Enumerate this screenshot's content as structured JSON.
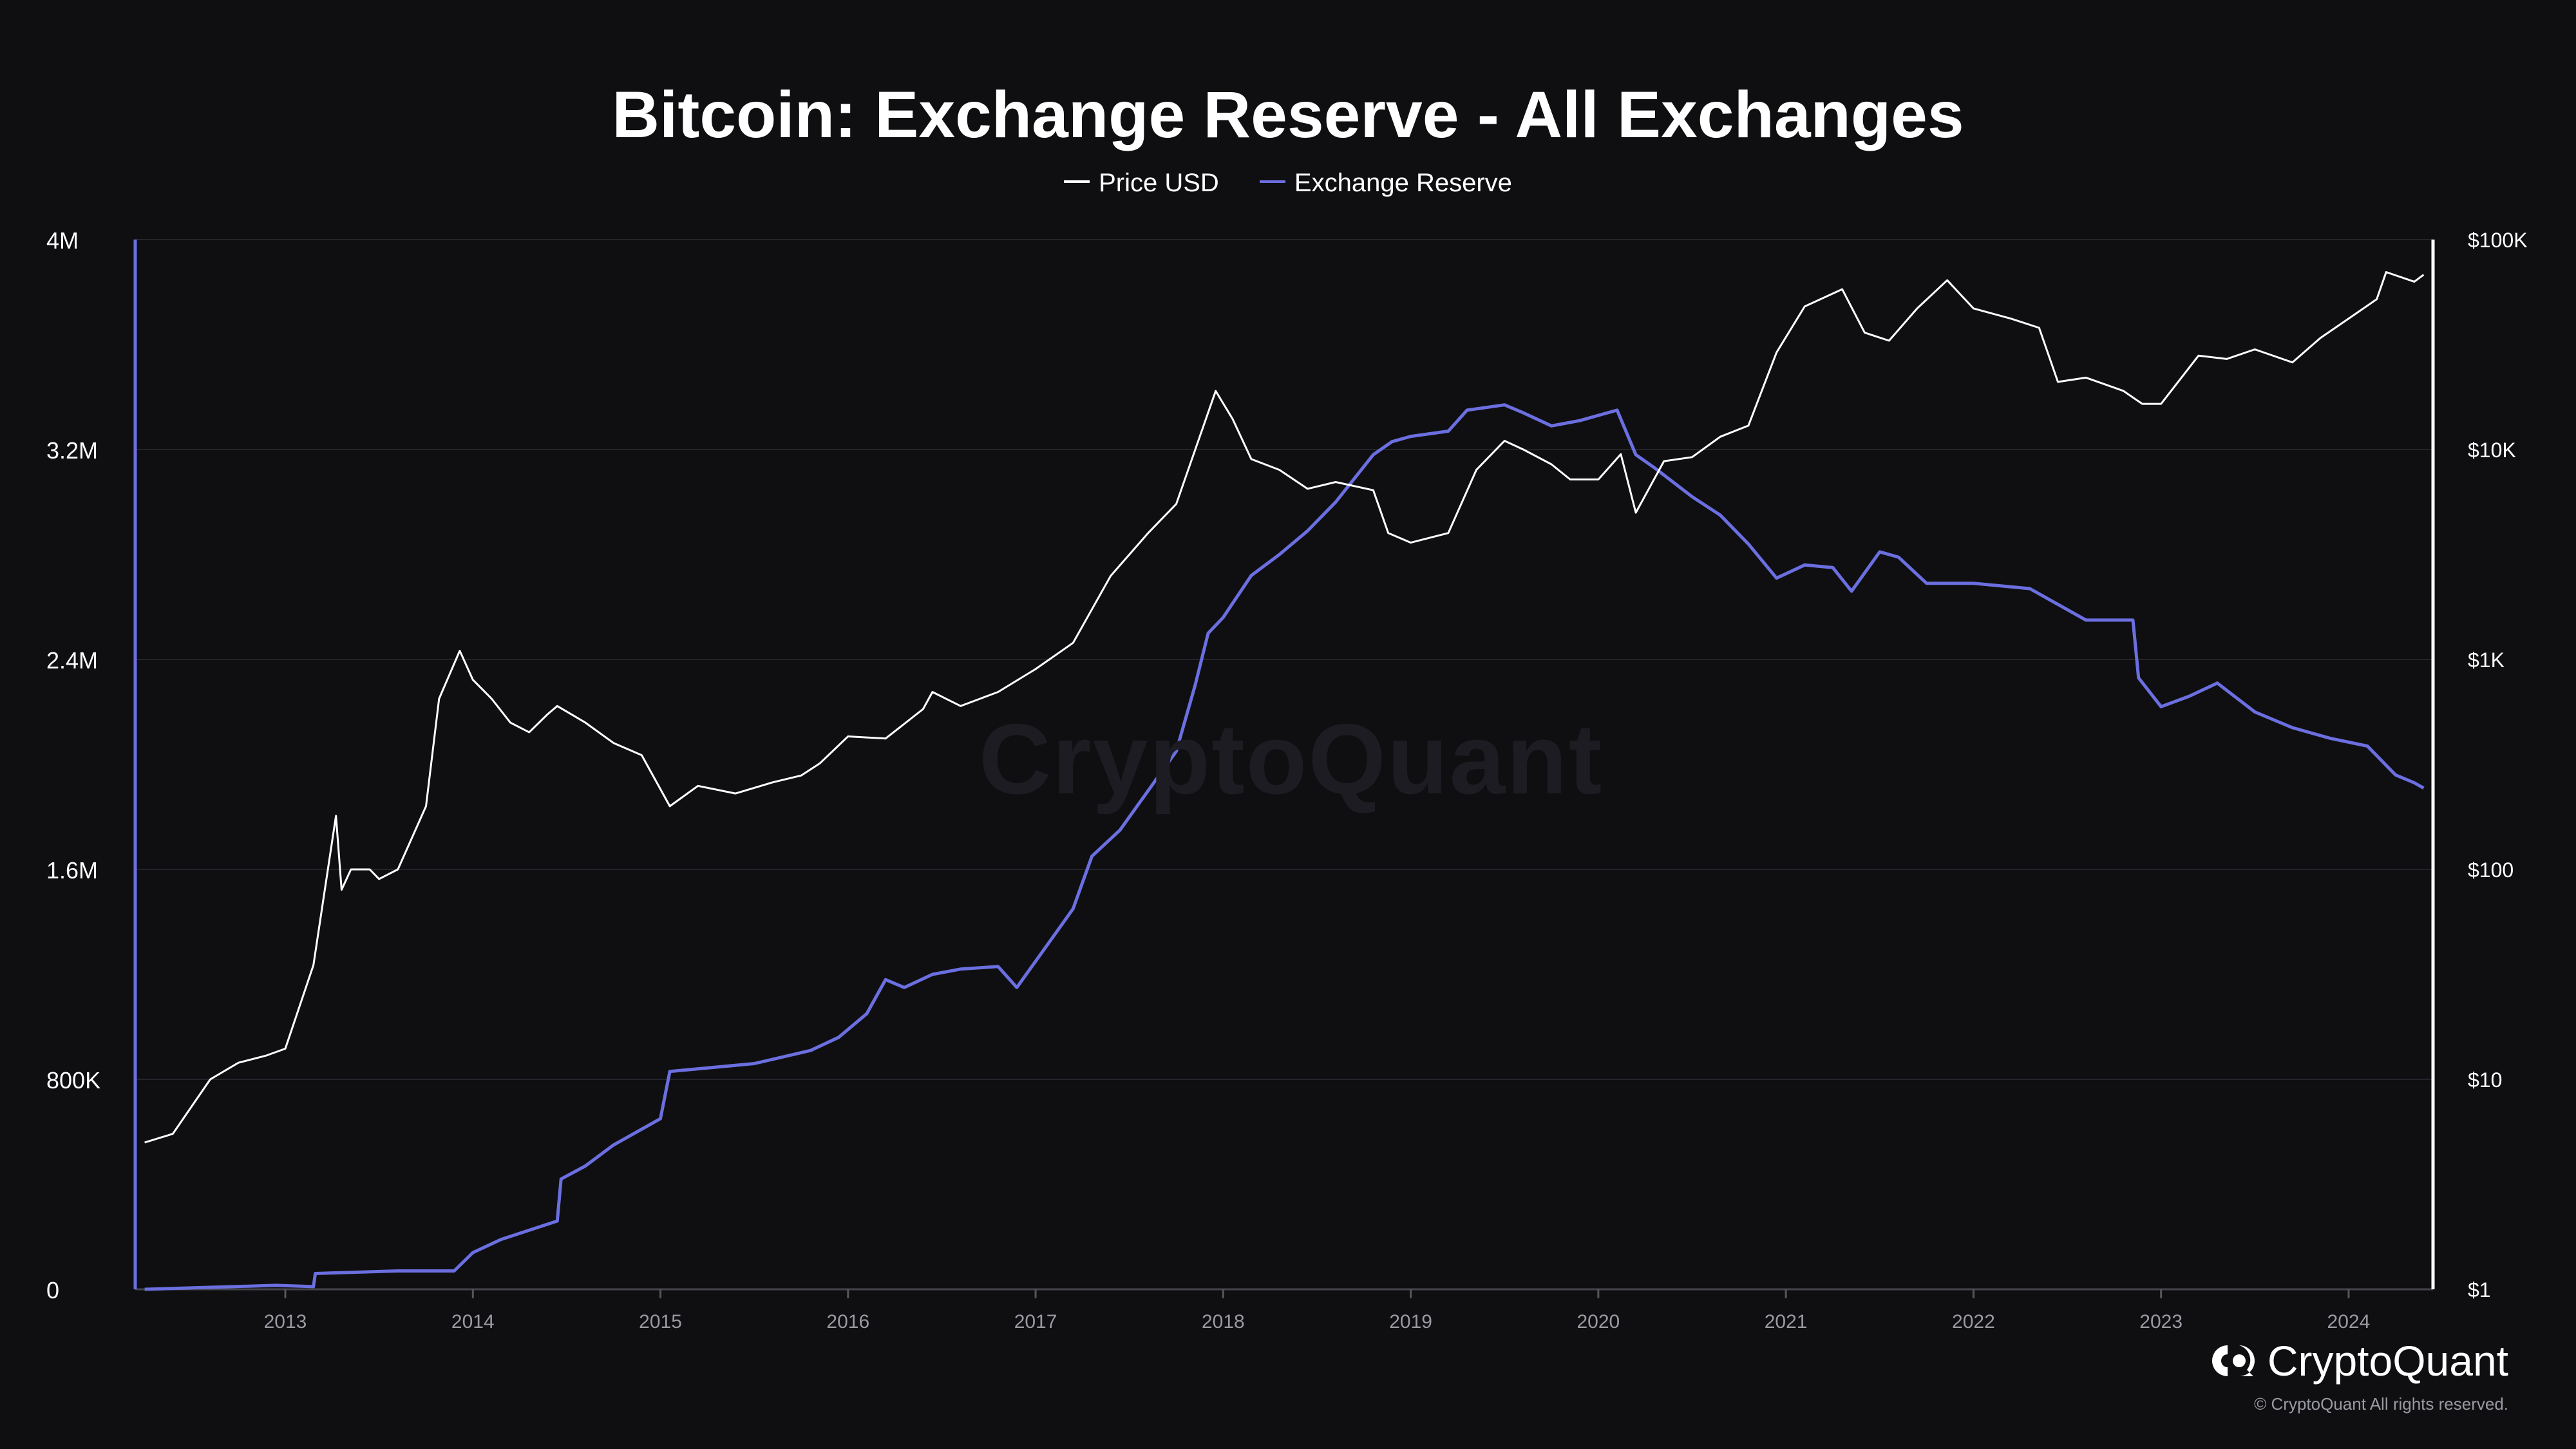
{
  "chart_data": {
    "type": "line",
    "title": "Bitcoin: Exchange Reserve - All Exchanges",
    "legend": {
      "placement": "top-center",
      "entries": [
        "Price USD",
        "Exchange Reserve"
      ]
    },
    "grid": true,
    "x_ticks": [
      "2013",
      "2014",
      "2015",
      "2016",
      "2017",
      "2018",
      "2019",
      "2020",
      "2021",
      "2022",
      "2023",
      "2024"
    ],
    "x_range": [
      2012.2,
      2024.45
    ],
    "y_left": {
      "ticks": [
        "0",
        "800K",
        "1.6M",
        "2.4M",
        "3.2M",
        "4M"
      ],
      "range": [
        0,
        4000000
      ]
    },
    "y_right": {
      "ticks": [
        "$1",
        "$10",
        "$100",
        "$1K",
        "$10K",
        "$100K"
      ],
      "range": [
        1,
        100000
      ],
      "scale": "log"
    },
    "series": [
      {
        "name": "Price USD",
        "axis": "right",
        "color": "#ffffff",
        "x": [
          2012.25,
          2012.4,
          2012.6,
          2012.75,
          2012.9,
          2013.0,
          2013.15,
          2013.27,
          2013.3,
          2013.35,
          2013.45,
          2013.5,
          2013.6,
          2013.75,
          2013.82,
          2013.93,
          2014.0,
          2014.1,
          2014.2,
          2014.3,
          2014.4,
          2014.45,
          2014.6,
          2014.75,
          2014.9,
          2015.05,
          2015.2,
          2015.4,
          2015.6,
          2015.75,
          2015.85,
          2016.0,
          2016.2,
          2016.4,
          2016.45,
          2016.6,
          2016.8,
          2017.0,
          2017.2,
          2017.4,
          2017.6,
          2017.75,
          2017.96,
          2018.05,
          2018.15,
          2018.3,
          2018.45,
          2018.6,
          2018.8,
          2018.88,
          2019.0,
          2019.2,
          2019.35,
          2019.5,
          2019.6,
          2019.75,
          2019.85,
          2020.0,
          2020.12,
          2020.2,
          2020.35,
          2020.5,
          2020.65,
          2020.8,
          2020.95,
          2021.1,
          2021.3,
          2021.42,
          2021.55,
          2021.7,
          2021.86,
          2022.0,
          2022.2,
          2022.35,
          2022.45,
          2022.6,
          2022.8,
          2022.9,
          2023.0,
          2023.2,
          2023.35,
          2023.5,
          2023.7,
          2023.85,
          2024.0,
          2024.15,
          2024.2,
          2024.35,
          2024.4
        ],
        "y": [
          5,
          5.5,
          10,
          12,
          13,
          14,
          35,
          180,
          80,
          100,
          100,
          90,
          100,
          200,
          650,
          1100,
          800,
          650,
          500,
          450,
          550,
          600,
          500,
          400,
          350,
          200,
          250,
          230,
          260,
          280,
          320,
          430,
          420,
          580,
          700,
          600,
          700,
          900,
          1200,
          2500,
          4000,
          5500,
          19000,
          14000,
          9000,
          8000,
          6500,
          7000,
          6400,
          4000,
          3600,
          4000,
          8000,
          11000,
          10000,
          8500,
          7200,
          7200,
          9500,
          5000,
          8800,
          9200,
          11500,
          13000,
          29000,
          48000,
          58000,
          36000,
          33000,
          47000,
          64000,
          47000,
          42000,
          38000,
          21000,
          22000,
          19000,
          16500,
          16500,
          28000,
          27000,
          30000,
          26000,
          34000,
          42000,
          52000,
          70000,
          63000,
          68000
        ]
      },
      {
        "name": "Exchange Reserve",
        "axis": "left",
        "color": "#6b6fe0",
        "x": [
          2012.25,
          2012.95,
          2013.15,
          2013.16,
          2013.6,
          2013.9,
          2014.0,
          2014.15,
          2014.45,
          2014.47,
          2014.6,
          2014.75,
          2015.0,
          2015.05,
          2015.5,
          2015.8,
          2015.95,
          2016.1,
          2016.2,
          2016.3,
          2016.45,
          2016.6,
          2016.8,
          2016.9,
          2017.1,
          2017.2,
          2017.3,
          2017.45,
          2017.6,
          2017.75,
          2017.85,
          2017.92,
          2018.0,
          2018.15,
          2018.3,
          2018.45,
          2018.6,
          2018.8,
          2018.9,
          2019.0,
          2019.2,
          2019.3,
          2019.5,
          2019.6,
          2019.75,
          2019.9,
          2020.1,
          2020.2,
          2020.3,
          2020.5,
          2020.65,
          2020.8,
          2020.95,
          2021.1,
          2021.25,
          2021.35,
          2021.5,
          2021.6,
          2021.75,
          2022.0,
          2022.3,
          2022.45,
          2022.6,
          2022.85,
          2022.88,
          2023.0,
          2023.15,
          2023.3,
          2023.5,
          2023.7,
          2023.9,
          2024.1,
          2024.25,
          2024.35,
          2024.4
        ],
        "y": [
          0,
          15000,
          10000,
          60000,
          70000,
          70000,
          140000,
          190000,
          260000,
          420000,
          470000,
          550000,
          650000,
          830000,
          860000,
          910000,
          960000,
          1050000,
          1180000,
          1150000,
          1200000,
          1220000,
          1230000,
          1150000,
          1350000,
          1450000,
          1650000,
          1750000,
          1900000,
          2050000,
          2300000,
          2500000,
          2560000,
          2720000,
          2800000,
          2890000,
          3000000,
          3180000,
          3230000,
          3250000,
          3270000,
          3350000,
          3370000,
          3340000,
          3290000,
          3310000,
          3350000,
          3180000,
          3130000,
          3020000,
          2950000,
          2840000,
          2710000,
          2760000,
          2750000,
          2660000,
          2810000,
          2790000,
          2690000,
          2690000,
          2670000,
          2610000,
          2550000,
          2550000,
          2330000,
          2220000,
          2260000,
          2310000,
          2200000,
          2140000,
          2100000,
          2070000,
          1960000,
          1930000,
          1910000
        ]
      }
    ]
  },
  "watermark": "CryptoQuant",
  "brand": {
    "name": "CryptoQuant",
    "copyright": "© CryptoQuant All rights reserved."
  }
}
